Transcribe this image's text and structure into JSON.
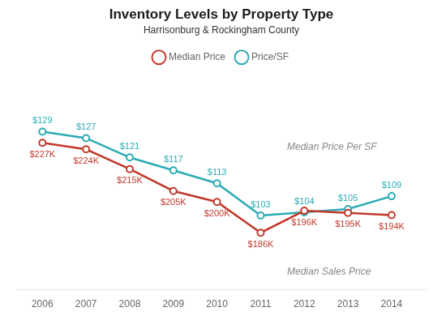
{
  "chart_data": {
    "type": "line",
    "title": "Inventory Levels by Property Type",
    "subtitle": "Harrisonburg & Rockingham County",
    "x": [
      2006,
      2007,
      2008,
      2009,
      2010,
      2011,
      2012,
      2013,
      2014
    ],
    "xlim": [
      2005.4,
      2014.8
    ],
    "xticks": [
      2006,
      2007,
      2008,
      2009,
      2010,
      2011,
      2012,
      2013,
      2014
    ],
    "ylim": [
      160,
      260
    ],
    "y2lim": [
      80,
      148
    ],
    "series": [
      {
        "name": "Median Price",
        "color": "#c0392b",
        "marker": "circle",
        "values": [
          227,
          224,
          215,
          205,
          200,
          186,
          196,
          195,
          194
        ],
        "value_labels": [
          "$227K",
          "$224K",
          "$215K",
          "$205K",
          "$200K",
          "$186K",
          "$196K",
          "$195K",
          "$194K"
        ]
      },
      {
        "name": "Price/SF",
        "color": "#2aabb5",
        "marker": "circle",
        "axis": "y2",
        "values": [
          129,
          127,
          121,
          117,
          113,
          103,
          104,
          105,
          109
        ],
        "value_labels": [
          "$129",
          "$127",
          "$121",
          "$117",
          "$113",
          "$103",
          "$104",
          "$105",
          "$109"
        ]
      }
    ],
    "annotations": [
      "Median Price Per SF",
      "Median Sales Price"
    ],
    "data_labels": true,
    "legend": "top",
    "grid": false,
    "tick_labels": "x"
  }
}
